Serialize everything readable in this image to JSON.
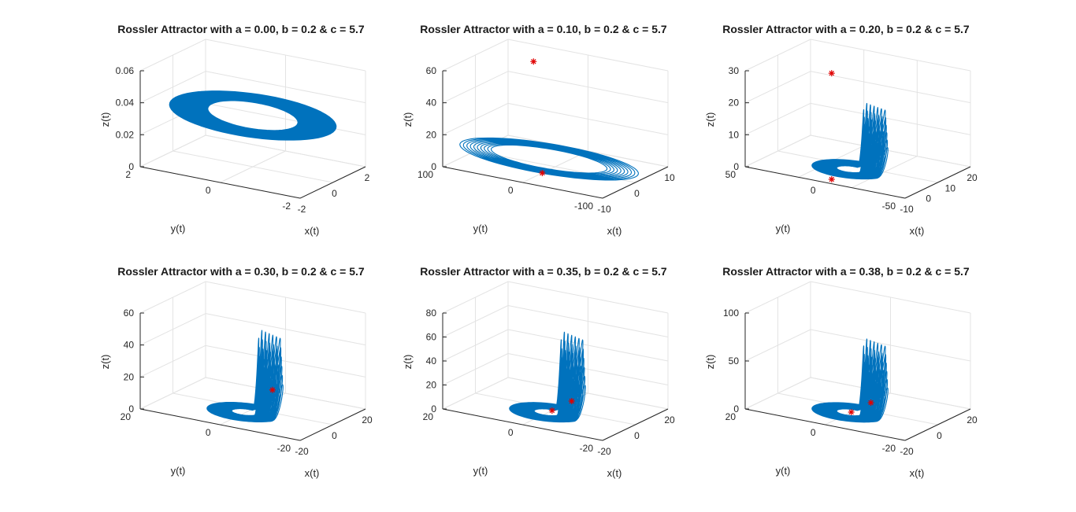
{
  "colors": {
    "series": "#0072BD",
    "marker": "#FF0000",
    "grid": "#E3E3E3",
    "axes": "#262626"
  },
  "chart_data": [
    {
      "type": "line3d",
      "title": "Rossler Attractor with a = 0.00, b = 0.2 & c = 5.7",
      "a": 0.0,
      "b": 0.2,
      "c": 5.7,
      "xlabel": "x(t)",
      "ylabel": "y(t)",
      "zlabel": "z(t)",
      "xlim": [
        -2,
        2
      ],
      "ylim": [
        -2,
        2
      ],
      "zlim": [
        0,
        0.06
      ],
      "xticks": [
        "-2",
        "0",
        "2"
      ],
      "yticks": [
        "-2",
        "0",
        "2"
      ],
      "zticks": [
        "0",
        "0.02",
        "0.04",
        "0.06"
      ],
      "grid": true,
      "series": [
        {
          "shape": "torus"
        }
      ],
      "markers": []
    },
    {
      "type": "line3d",
      "title": "Rossler Attractor with a = 0.10, b = 0.2 & c = 5.7",
      "a": 0.1,
      "b": 0.2,
      "c": 5.7,
      "xlabel": "x(t)",
      "ylabel": "y(t)",
      "zlabel": "z(t)",
      "xlim": [
        -10,
        10
      ],
      "ylim": [
        -100,
        100
      ],
      "zlim": [
        0,
        60
      ],
      "xticks": [
        "-10",
        "0",
        "10"
      ],
      "yticks": [
        "-100",
        "0",
        "100"
      ],
      "zticks": [
        "0",
        "20",
        "40",
        "60"
      ],
      "grid": true,
      "series": [
        {
          "shape": "ellipse"
        }
      ],
      "markers": [
        [
          -4,
          0,
          0
        ],
        [
          8,
          60,
          52
        ]
      ]
    },
    {
      "type": "line3d",
      "title": "Rossler Attractor with a = 0.20, b = 0.2 & c = 5.7",
      "a": 0.2,
      "b": 0.2,
      "c": 5.7,
      "xlabel": "x(t)",
      "ylabel": "y(t)",
      "zlabel": "z(t)",
      "xlim": [
        -10,
        20
      ],
      "ylim": [
        -50,
        50
      ],
      "zlim": [
        0,
        30
      ],
      "xticks": [
        "-10",
        "0",
        "10",
        "20"
      ],
      "yticks": [
        "-50",
        "0",
        "50"
      ],
      "zticks": [
        "0",
        "10",
        "20",
        "30"
      ],
      "grid": true,
      "series": [
        {
          "shape": "attractor",
          "spike_height": 21
        }
      ],
      "markers": [
        [
          -7,
          0,
          0
        ],
        [
          15,
          30,
          23
        ]
      ]
    },
    {
      "type": "line3d",
      "title": "Rossler Attractor with a = 0.30, b = 0.2 & c = 5.7",
      "a": 0.3,
      "b": 0.2,
      "c": 5.7,
      "xlabel": "x(t)",
      "ylabel": "y(t)",
      "zlabel": "z(t)",
      "xlim": [
        -20,
        20
      ],
      "ylim": [
        -20,
        20
      ],
      "zlim": [
        0,
        60
      ],
      "xticks": [
        "-20",
        "0",
        "20"
      ],
      "yticks": [
        "-20",
        "0",
        "20"
      ],
      "zticks": [
        "0",
        "20",
        "40",
        "60"
      ],
      "grid": true,
      "series": [
        {
          "shape": "attractor",
          "spike_height": 52
        }
      ],
      "markers": [
        [
          12,
          0,
          6
        ]
      ]
    },
    {
      "type": "line3d",
      "title": "Rossler Attractor with a = 0.35, b = 0.2 & c = 5.7",
      "a": 0.35,
      "b": 0.2,
      "c": 5.7,
      "xlabel": "x(t)",
      "ylabel": "y(t)",
      "zlabel": "z(t)",
      "xlim": [
        -20,
        20
      ],
      "ylim": [
        -20,
        20
      ],
      "zlim": [
        0,
        80
      ],
      "xticks": [
        "-20",
        "0",
        "20"
      ],
      "yticks": [
        "-20",
        "0",
        "20"
      ],
      "zticks": [
        "0",
        "20",
        "40",
        "60",
        "80"
      ],
      "grid": true,
      "series": [
        {
          "shape": "attractor",
          "spike_height": 68
        }
      ],
      "markers": [
        [
          -2,
          0,
          0
        ],
        [
          10,
          0,
          0
        ]
      ]
    },
    {
      "type": "line3d",
      "title": "Rossler Attractor with a = 0.38, b = 0.2 & c = 5.7",
      "a": 0.38,
      "b": 0.2,
      "c": 5.7,
      "xlabel": "x(t)",
      "ylabel": "y(t)",
      "zlabel": "z(t)",
      "xlim": [
        -20,
        20
      ],
      "ylim": [
        -20,
        20
      ],
      "zlim": [
        0,
        100
      ],
      "xticks": [
        "-20",
        "0",
        "20"
      ],
      "yticks": [
        "-20",
        "0",
        "20"
      ],
      "zticks": [
        "0",
        "50",
        "100"
      ],
      "grid": true,
      "series": [
        {
          "shape": "attractor",
          "spike_height": 78
        }
      ],
      "markers": [
        [
          -4,
          0,
          0
        ],
        [
          8,
          0,
          0
        ]
      ]
    }
  ]
}
